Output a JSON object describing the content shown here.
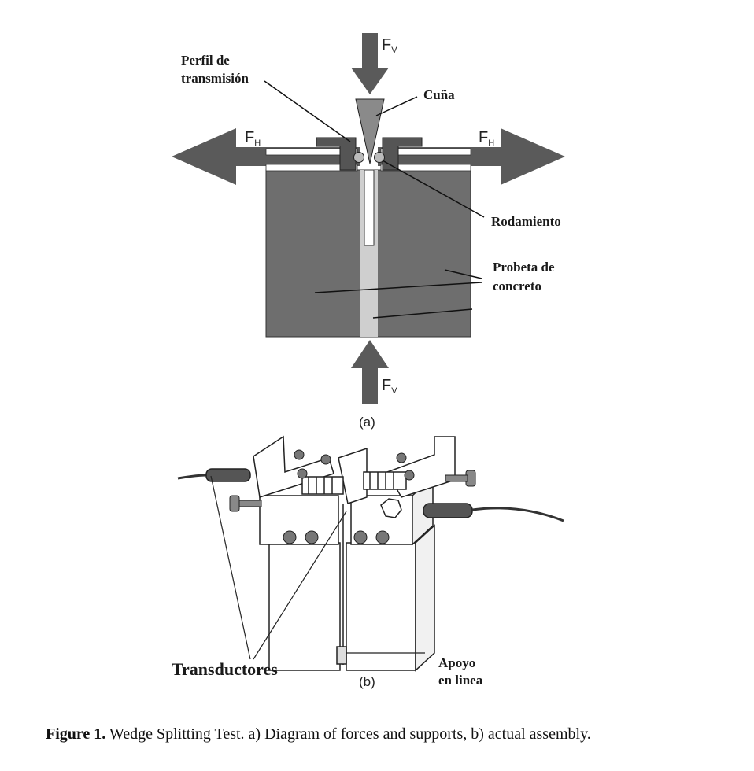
{
  "diagram_a": {
    "force_vertical": "F",
    "force_vertical_sub": "V",
    "force_horizontal": "F",
    "force_horizontal_sub": "H",
    "label_profile_line1": "Perfil de",
    "label_profile_line2": "transmisión",
    "label_wedge": "Cuña",
    "label_bearing": "Rodamiento",
    "label_specimen_line1": "Probeta de",
    "label_specimen_line2": "concreto",
    "panel_label": "(a)"
  },
  "diagram_b": {
    "label_transducers": "Transductores",
    "label_support_line1": "Apoyo",
    "label_support_line2": "en linea",
    "panel_label": "(b)"
  },
  "caption": {
    "number": "Figure 1.",
    "text": " Wedge Splitting Test. a) Diagram of forces and supports, b) actual assembly."
  },
  "colors": {
    "specimen": "#6e6e6e",
    "groove": "#cfcfcf",
    "arrow": "#5a5a5a",
    "outline": "#222222"
  }
}
